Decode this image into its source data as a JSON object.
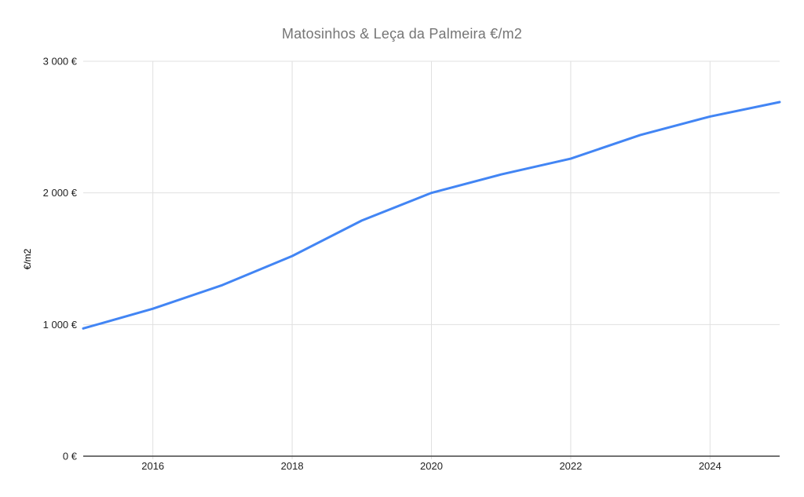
{
  "chart_data": {
    "type": "line",
    "title": "Matosinhos & Leça da Palmeira €/m2",
    "ylabel": "€/m2",
    "xlabel": "",
    "x": [
      2015,
      2016,
      2017,
      2018,
      2019,
      2020,
      2021,
      2022,
      2023,
      2024,
      2025
    ],
    "series": [
      {
        "name": "€/m2",
        "color": "#4285f4",
        "values": [
          970,
          1120,
          1300,
          1520,
          1790,
          2000,
          2140,
          2260,
          2440,
          2580,
          2690
        ]
      }
    ],
    "xlim": [
      2015,
      2025
    ],
    "ylim": [
      0,
      3000
    ],
    "y_ticks": [
      {
        "value": 0,
        "label": "0 €"
      },
      {
        "value": 1000,
        "label": "1 000 €"
      },
      {
        "value": 2000,
        "label": "2 000 €"
      },
      {
        "value": 3000,
        "label": "3 000 €"
      }
    ],
    "x_ticks": [
      {
        "value": 2016,
        "label": "2016"
      },
      {
        "value": 2018,
        "label": "2018"
      },
      {
        "value": 2020,
        "label": "2020"
      },
      {
        "value": 2022,
        "label": "2022"
      },
      {
        "value": 2024,
        "label": "2024"
      }
    ],
    "grid": true,
    "legend": "none",
    "colors": {
      "line": "#4285f4",
      "grid": "#e0e0e0",
      "axis": "#444444",
      "title": "#757575",
      "tick_label": "#222222"
    }
  }
}
